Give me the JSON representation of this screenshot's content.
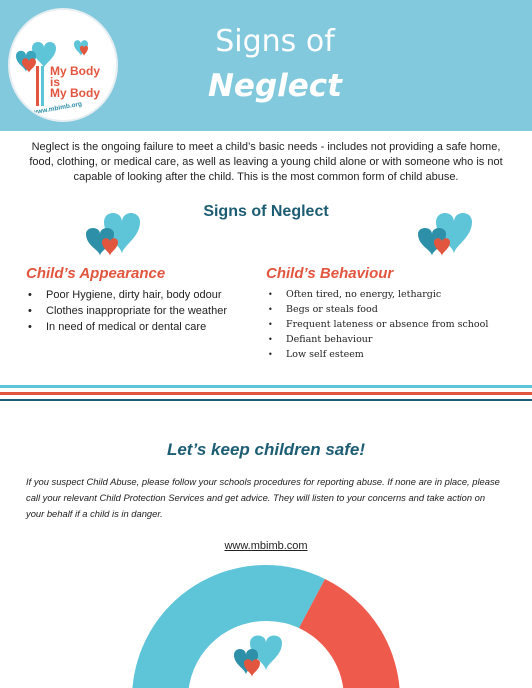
{
  "header": {
    "title_line1": "Signs of",
    "title_line2": "Neglect"
  },
  "logo": {
    "line1": "My Body",
    "line2": "is",
    "line3": "My Body",
    "url": "www.mbimb.org"
  },
  "intro": "Neglect is the ongoing failure to meet a child’s basic needs - includes not providing a safe home, food, clothing, or medical care, as well as leaving a young child alone or with someone who is not capable of looking after the child. This is the most common form of child abuse.",
  "section_title": "Signs of Neglect",
  "appearance": {
    "heading": "Child’s Appearance",
    "items": [
      "Poor Hygiene, dirty hair, body odour",
      "Clothes inappropriate for the weather",
      "In need of medical or dental care"
    ]
  },
  "behaviour": {
    "heading": "Child’s Behaviour",
    "items": [
      "Often tired, no energy, lethargic",
      "Begs or steals food",
      "Frequent lateness or absence from school",
      "Defiant behaviour",
      "Low self esteem"
    ]
  },
  "safe": {
    "title": "Let’s keep children safe!",
    "text": "If you suspect Child Abuse, please follow your schools procedures for reporting abuse. If none are in place, please call your relevant Child Protection Services and get advice. They will listen to your concerns and take action on your behalf if a child is in danger.",
    "link": "www.mbimb.com"
  },
  "colors": {
    "header_bg": "#82c9dd",
    "accent_red": "#e2553f",
    "dark_teal": "#1d5d73",
    "light_blue": "#5ec4d8"
  },
  "icons": [
    "hearts-logo-icon",
    "hearts-icon"
  ]
}
